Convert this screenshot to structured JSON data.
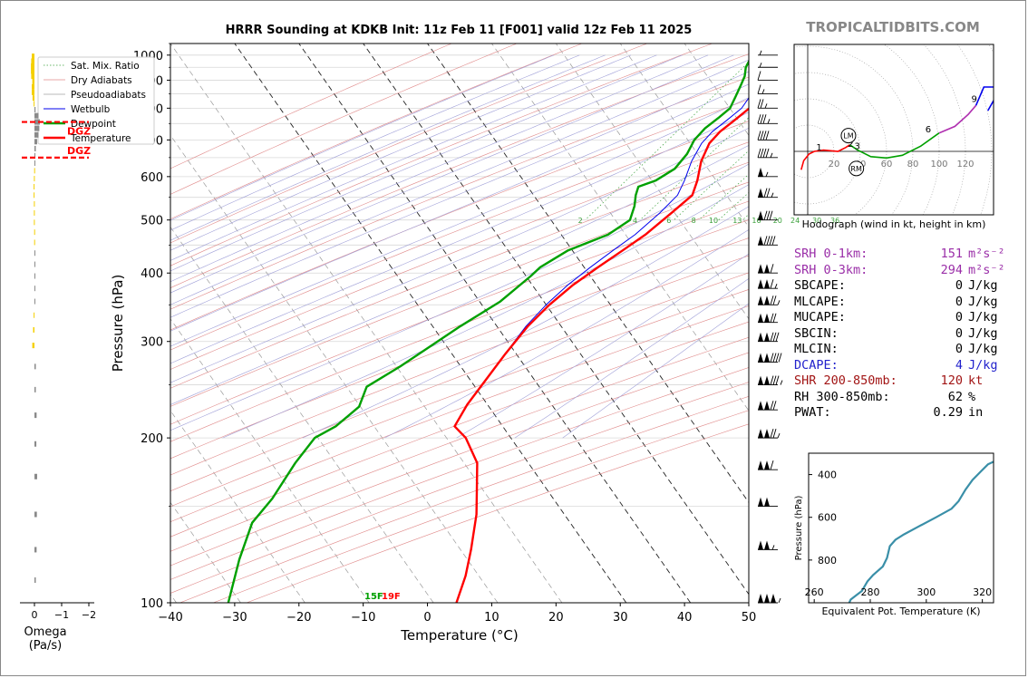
{
  "title": "HRRR Sounding at KDKB Init: 11z Feb 11 [F001] valid 12z Feb 11 2025",
  "brand": "TROPICALTIDBITS.COM",
  "colors": {
    "temperature": "#ff0000",
    "dewpoint": "#00a000",
    "wetbulb": "#0000ee",
    "dry_adiabat": "#e08a8a",
    "moist_adiabat": "#a0a0d8",
    "mixing_ratio": "#3aa03a",
    "isotherm": "#333333",
    "grid": "#d8d8d8",
    "omega_positive": "#f5d000",
    "omega_negative": "#8a8a8a",
    "dgz": "#ff0000",
    "theta_e": "#3a8fa8"
  },
  "chart_data": [
    {
      "type": "line",
      "name": "skew-t",
      "xlabel": "Temperature (°C)",
      "ylabel": "Pressure (hPa)",
      "xlim": [
        -40,
        50
      ],
      "ylim": [
        1050,
        100
      ],
      "yscale": "log",
      "xticks": [
        -40,
        -30,
        -20,
        -10,
        0,
        10,
        20,
        30,
        40,
        50
      ],
      "yticks": [
        100,
        200,
        300,
        400,
        500,
        600,
        700,
        800,
        900,
        1000
      ],
      "legend": {
        "position": "top-left",
        "entries": [
          "Sat. Mix. Ratio",
          "Dry Adiabats",
          "Pseudoadiabats",
          "Wetbulb",
          "Dewpoint",
          "Temperature"
        ]
      },
      "mixing_ratio_labels": [
        "2",
        "4",
        "6",
        "8",
        "10",
        "13",
        "16",
        "20",
        "24",
        "30",
        "36"
      ],
      "surface_labels": {
        "dewpoint": "15F",
        "temperature": "19F"
      },
      "series": [
        {
          "name": "Temperature",
          "points": [
            [
              -6.2,
              1000
            ],
            [
              -6.8,
              985
            ],
            [
              -4.5,
              950
            ],
            [
              -4.3,
              910
            ],
            [
              -3.8,
              870
            ],
            [
              -3.5,
              835
            ],
            [
              -3.8,
              800
            ],
            [
              -4.8,
              760
            ],
            [
              -5.8,
              725
            ],
            [
              -6.2,
              690
            ],
            [
              -5.5,
              640
            ],
            [
              -4.0,
              590
            ],
            [
              -3.2,
              555
            ],
            [
              -4.5,
              515
            ],
            [
              -6.2,
              470
            ],
            [
              -8.0,
              440
            ],
            [
              -10.0,
              410
            ],
            [
              -12.0,
              380
            ],
            [
              -13.5,
              350
            ],
            [
              -14.5,
              320
            ],
            [
              -15.0,
              285
            ],
            [
              -15.2,
              255
            ],
            [
              -15.4,
              230
            ],
            [
              -15.0,
              210
            ],
            [
              -12.0,
              200
            ],
            [
              -7.5,
              180
            ],
            [
              -4.5,
              160
            ],
            [
              -2.0,
              145
            ],
            [
              1.0,
              125
            ],
            [
              3.0,
              112
            ],
            [
              4.5,
              100
            ]
          ]
        },
        {
          "name": "Dewpoint",
          "points": [
            [
              -9.0,
              980
            ],
            [
              -8.8,
              950
            ],
            [
              -8.0,
              915
            ],
            [
              -7.6,
              880
            ],
            [
              -7.2,
              840
            ],
            [
              -6.8,
              800
            ],
            [
              -7.5,
              770
            ],
            [
              -8.5,
              735
            ],
            [
              -8.9,
              700
            ],
            [
              -8.5,
              660
            ],
            [
              -8.8,
              620
            ],
            [
              -10.5,
              590
            ],
            [
              -12.5,
              575
            ],
            [
              -12.0,
              555
            ],
            [
              -11.0,
              530
            ],
            [
              -10.2,
              500
            ],
            [
              -12.0,
              470
            ],
            [
              -16.5,
              440
            ],
            [
              -19.0,
              410
            ],
            [
              -19.5,
              395
            ],
            [
              -21.5,
              355
            ],
            [
              -25.0,
              320
            ],
            [
              -30.0,
              270
            ],
            [
              -33.0,
              248
            ],
            [
              -32.0,
              228
            ],
            [
              -33.5,
              210
            ],
            [
              -35.5,
              200
            ],
            [
              -35.8,
              180
            ],
            [
              -35.5,
              155
            ],
            [
              -36.0,
              140
            ],
            [
              -34.0,
              120
            ],
            [
              -31.0,
              100
            ]
          ]
        },
        {
          "name": "Wetbulb",
          "points": [
            [
              -6.5,
              1000
            ],
            [
              -7.0,
              975
            ],
            [
              -6.2,
              950
            ],
            [
              -5.8,
              910
            ],
            [
              -5.4,
              870
            ],
            [
              -5.0,
              835
            ],
            [
              -5.0,
              800
            ],
            [
              -6.0,
              760
            ],
            [
              -7.0,
              725
            ],
            [
              -7.4,
              690
            ],
            [
              -7.0,
              640
            ],
            [
              -6.0,
              590
            ],
            [
              -5.5,
              555
            ],
            [
              -6.3,
              515
            ],
            [
              -7.8,
              470
            ],
            [
              -9.5,
              440
            ],
            [
              -11.2,
              410
            ],
            [
              -12.8,
              380
            ],
            [
              -14.0,
              350
            ],
            [
              -14.8,
              320
            ],
            [
              -15.0,
              290
            ]
          ]
        }
      ],
      "isotherm_highlight": [
        -30,
        -20,
        -10,
        0
      ]
    },
    {
      "type": "scatter",
      "name": "hodograph",
      "caption": "Hodograph (wind in kt, height in km)",
      "ring_labels": [
        "20",
        "40",
        "60",
        "80",
        "100",
        "120"
      ],
      "height_labels": [
        "1",
        "2",
        "3",
        "6",
        "9"
      ],
      "markers": [
        "LM",
        "RM"
      ],
      "trace": [
        {
          "color": "#ff0000",
          "points": [
            [
              -5,
              -14
            ],
            [
              -3,
              -7
            ],
            [
              1,
              -2
            ],
            [
              5,
              0
            ],
            [
              12,
              1
            ],
            [
              23,
              0
            ],
            [
              29,
              3
            ],
            [
              32,
              5
            ]
          ]
        },
        {
          "color": "#00a000",
          "points": [
            [
              32,
              5
            ],
            [
              38,
              1
            ],
            [
              48,
              -4
            ],
            [
              60,
              -5
            ],
            [
              72,
              -3
            ],
            [
              86,
              4
            ],
            [
              100,
              14
            ]
          ]
        },
        {
          "color": "#b030b0",
          "points": [
            [
              100,
              14
            ],
            [
              112,
              19
            ],
            [
              122,
              28
            ],
            [
              128,
              35
            ]
          ]
        },
        {
          "color": "#0000ee",
          "points": [
            [
              128,
              35
            ],
            [
              134,
              49
            ],
            [
              147,
              49
            ],
            [
              141,
              38
            ],
            [
              137,
              31
            ]
          ]
        }
      ],
      "height_label_positions": [
        [
          12,
          2
        ],
        [
          36,
          5
        ],
        [
          41,
          3
        ],
        [
          95,
          16
        ],
        [
          130,
          39
        ]
      ],
      "lm": [
        31,
        12
      ],
      "rm": [
        37,
        -13
      ]
    },
    {
      "type": "line",
      "name": "equivalent-potential-temperature",
      "xlabel": "Equivalent Pot. Temperature (K)",
      "ylabel": "Pressure (hPa)",
      "xlim": [
        258,
        324
      ],
      "ylim": [
        1000,
        300
      ],
      "xticks": [
        260,
        280,
        300,
        320
      ],
      "yticks": [
        400,
        600,
        800
      ],
      "points": [
        [
          272.5,
          1000
        ],
        [
          273,
          985
        ],
        [
          275,
          965
        ],
        [
          277,
          945
        ],
        [
          279,
          900
        ],
        [
          281,
          870
        ],
        [
          284.5,
          830
        ],
        [
          286,
          790
        ],
        [
          287,
          735
        ],
        [
          289,
          705
        ],
        [
          292,
          680
        ],
        [
          297,
          645
        ],
        [
          303.5,
          600
        ],
        [
          309,
          560
        ],
        [
          311.5,
          525
        ],
        [
          314,
          470
        ],
        [
          316.5,
          425
        ],
        [
          319.5,
          385
        ],
        [
          322,
          352
        ],
        [
          324,
          340
        ]
      ]
    },
    {
      "type": "bar",
      "name": "omega",
      "xlabel": "Omega (Pa/s)",
      "xlim": [
        0.3,
        -2.1
      ],
      "xticks": [
        "0",
        "−1",
        "−2"
      ],
      "dgz_label": "DGZ",
      "dgz_levels": [
        755,
        650
      ],
      "pressures": [
        995,
        975,
        955,
        935,
        915,
        895,
        875,
        855,
        835,
        815,
        795,
        775,
        755,
        735,
        715,
        695,
        675,
        655,
        635,
        615,
        595,
        575,
        555,
        535,
        515,
        495,
        475,
        455,
        435,
        415,
        395,
        375,
        355,
        335,
        315,
        295,
        270,
        245,
        220,
        195,
        170,
        145,
        125,
        110
      ],
      "values": [
        0.1,
        0.12,
        0.13,
        0.13,
        0.12,
        0.08,
        0.1,
        0.1,
        0.07,
        0.03,
        -0.04,
        -0.15,
        -0.2,
        -0.18,
        -0.15,
        -0.1,
        -0.05,
        -0.02,
        0,
        0.01,
        0.02,
        0.03,
        0.03,
        0.02,
        0.02,
        0.02,
        0.01,
        0.01,
        0,
        -0.02,
        -0.03,
        -0.03,
        -0.03,
        0.03,
        0.05,
        0.08,
        -0.05,
        -0.05,
        -0.08,
        -0.07,
        -0.1,
        -0.09,
        -0.08,
        -0.05
      ]
    }
  ],
  "stats": [
    {
      "label": "SRH 0-1km:",
      "value": "151",
      "unit": "m²s⁻²",
      "color": "purple"
    },
    {
      "label": "SRH 0-3km:",
      "value": "294",
      "unit": "m²s⁻²",
      "color": "purple"
    },
    {
      "label": "SBCAPE:",
      "value": "0",
      "unit": "J/kg",
      "color": ""
    },
    {
      "label": "MLCAPE:",
      "value": "0",
      "unit": "J/kg",
      "color": ""
    },
    {
      "label": "MUCAPE:",
      "value": "0",
      "unit": "J/kg",
      "color": ""
    },
    {
      "label": "SBCIN:",
      "value": "0",
      "unit": "J/kg",
      "color": ""
    },
    {
      "label": "MLCIN:",
      "value": "0",
      "unit": "J/kg",
      "color": ""
    },
    {
      "label": "DCAPE:",
      "value": "4",
      "unit": "J/kg",
      "color": "blue"
    },
    {
      "label": "SHR 200-850mb:",
      "value": "120",
      "unit": "kt",
      "color": "brown"
    },
    {
      "label": "RH 300-850mb:",
      "value": "62",
      "unit": "%",
      "color": ""
    },
    {
      "label": "PWAT:",
      "value": "0.29",
      "unit": "in",
      "color": ""
    }
  ],
  "wind_barbs": [
    {
      "p": 100,
      "kt": 155
    },
    {
      "p": 125,
      "kt": 105
    },
    {
      "p": 150,
      "kt": 100
    },
    {
      "p": 175,
      "kt": 110
    },
    {
      "p": 200,
      "kt": 125
    },
    {
      "p": 225,
      "kt": 120
    },
    {
      "p": 250,
      "kt": 135
    },
    {
      "p": 275,
      "kt": 140
    },
    {
      "p": 300,
      "kt": 130
    },
    {
      "p": 325,
      "kt": 120
    },
    {
      "p": 350,
      "kt": 125
    },
    {
      "p": 375,
      "kt": 115
    },
    {
      "p": 400,
      "kt": 110
    },
    {
      "p": 450,
      "kt": 90
    },
    {
      "p": 500,
      "kt": 80
    },
    {
      "p": 550,
      "kt": 75
    },
    {
      "p": 600,
      "kt": 55
    },
    {
      "p": 650,
      "kt": 45
    },
    {
      "p": 700,
      "kt": 40
    },
    {
      "p": 750,
      "kt": 35
    },
    {
      "p": 800,
      "kt": 25
    },
    {
      "p": 850,
      "kt": 15
    },
    {
      "p": 900,
      "kt": 10
    },
    {
      "p": 950,
      "kt": 5
    },
    {
      "p": 1000,
      "kt": 5
    }
  ]
}
